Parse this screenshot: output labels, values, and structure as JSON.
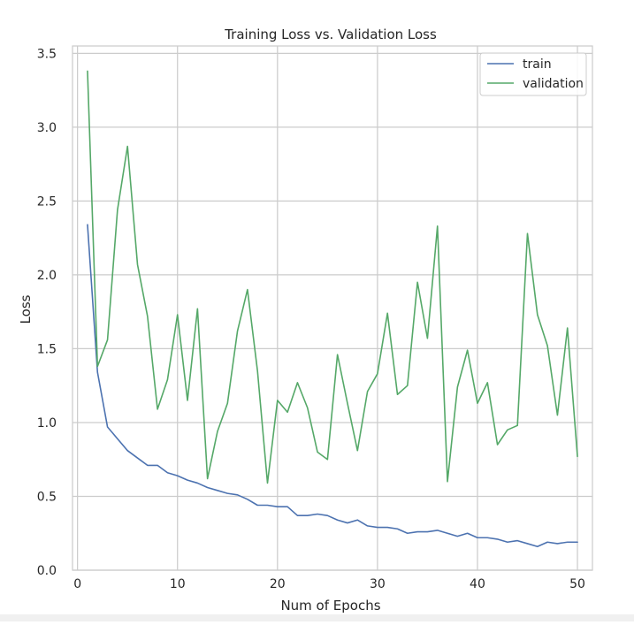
{
  "chart_data": {
    "type": "line",
    "title": "Training Loss vs. Validation Loss",
    "xlabel": "Num of Epochs",
    "ylabel": "Loss",
    "xlim": [
      -0.5,
      51.5
    ],
    "ylim": [
      0.0,
      3.55
    ],
    "xticks": [
      0,
      10,
      20,
      30,
      40,
      50
    ],
    "yticks": [
      0.0,
      0.5,
      1.0,
      1.5,
      2.0,
      2.5,
      3.0,
      3.5
    ],
    "ytick_labels": [
      "0.0",
      "0.5",
      "1.0",
      "1.5",
      "2.0",
      "2.5",
      "3.0",
      "3.5"
    ],
    "grid": true,
    "legend_position": "top-right",
    "x": [
      1,
      2,
      3,
      4,
      5,
      6,
      7,
      8,
      9,
      10,
      11,
      12,
      13,
      14,
      15,
      16,
      17,
      18,
      19,
      20,
      21,
      22,
      23,
      24,
      25,
      26,
      27,
      28,
      29,
      30,
      31,
      32,
      33,
      34,
      35,
      36,
      37,
      38,
      39,
      40,
      41,
      42,
      43,
      44,
      45,
      46,
      47,
      48,
      49,
      50
    ],
    "series": [
      {
        "name": "train",
        "color": "#4c72b0",
        "values": [
          2.34,
          1.34,
          0.97,
          0.89,
          0.81,
          0.76,
          0.71,
          0.71,
          0.66,
          0.64,
          0.61,
          0.59,
          0.56,
          0.54,
          0.52,
          0.51,
          0.48,
          0.44,
          0.44,
          0.43,
          0.43,
          0.37,
          0.37,
          0.38,
          0.37,
          0.34,
          0.32,
          0.34,
          0.3,
          0.29,
          0.29,
          0.28,
          0.25,
          0.26,
          0.26,
          0.27,
          0.25,
          0.23,
          0.25,
          0.22,
          0.22,
          0.21,
          0.19,
          0.2,
          0.18,
          0.16,
          0.19,
          0.18,
          0.19,
          0.19
        ]
      },
      {
        "name": "validation",
        "color": "#55a868",
        "values": [
          3.38,
          1.38,
          1.56,
          2.44,
          2.87,
          2.07,
          1.72,
          1.09,
          1.29,
          1.73,
          1.15,
          1.77,
          0.62,
          0.94,
          1.13,
          1.62,
          1.9,
          1.35,
          0.59,
          1.15,
          1.07,
          1.27,
          1.1,
          0.8,
          0.75,
          1.46,
          1.13,
          0.81,
          1.21,
          1.33,
          1.74,
          1.19,
          1.25,
          1.95,
          1.57,
          2.33,
          0.6,
          1.24,
          1.49,
          1.13,
          1.27,
          0.85,
          0.95,
          0.98,
          2.28,
          1.73,
          1.52,
          1.05,
          1.64,
          0.77
        ]
      }
    ]
  }
}
